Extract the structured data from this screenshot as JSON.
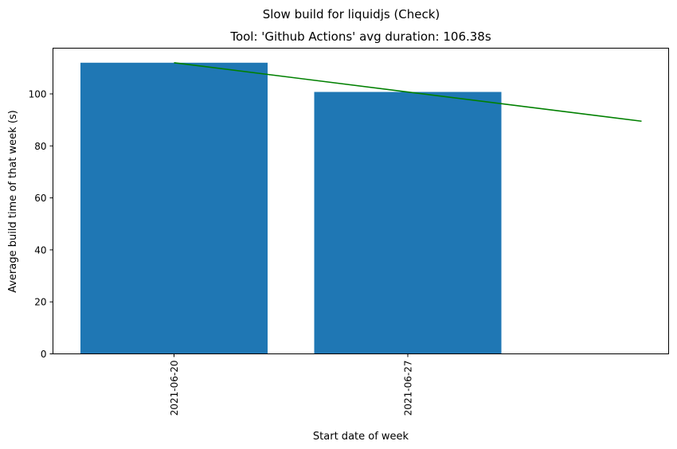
{
  "chart_data": {
    "type": "bar",
    "suptitle": "Slow build for liquidjs (Check)",
    "title": "Tool: 'Github Actions' avg duration: 106.38s",
    "xlabel": "Start date of week",
    "ylabel": "Average build time of that week (s)",
    "categories": [
      "2021-06-20",
      "2021-06-27"
    ],
    "values": [
      112,
      100.76
    ],
    "trend_line": {
      "x": [
        "2021-06-20",
        "2021-07-04"
      ],
      "y": [
        112,
        89.5
      ]
    },
    "ylim": [
      0,
      117.6
    ],
    "yticks": [
      0,
      20,
      40,
      60,
      80,
      100
    ],
    "grid": false,
    "colors": {
      "bar": "#1f77b4",
      "trend": "#008000",
      "axis": "#000000"
    }
  }
}
